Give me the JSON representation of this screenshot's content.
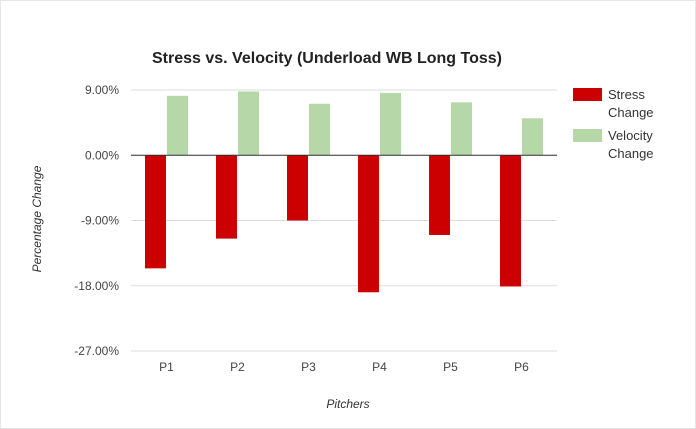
{
  "chart_data": {
    "type": "bar",
    "title": "Stress vs. Velocity (Underload WB Long Toss)",
    "xlabel": "Pitchers",
    "ylabel": "Percentage Change",
    "categories": [
      "P1",
      "P2",
      "P3",
      "P4",
      "P5",
      "P6"
    ],
    "series": [
      {
        "name": "Stress Change",
        "legend_lines": [
          "Stress",
          "Change"
        ],
        "color": "#cc0000",
        "values": [
          -15.6,
          -11.5,
          -9.0,
          -18.9,
          -11.0,
          -18.1
        ]
      },
      {
        "name": "Velocity Change",
        "legend_lines": [
          "Velocity",
          "Change"
        ],
        "color": "#b6d7a8",
        "values": [
          8.2,
          8.8,
          7.1,
          8.6,
          7.3,
          5.1
        ]
      }
    ],
    "ylim": [
      -27,
      9
    ],
    "yticks": [
      9,
      0,
      -9,
      -18,
      -27
    ],
    "ytick_labels": [
      "9.00%",
      "0.00%",
      "-9.00%",
      "-18.00%",
      "-27.00%"
    ],
    "grid": true,
    "legend_position": "right"
  }
}
